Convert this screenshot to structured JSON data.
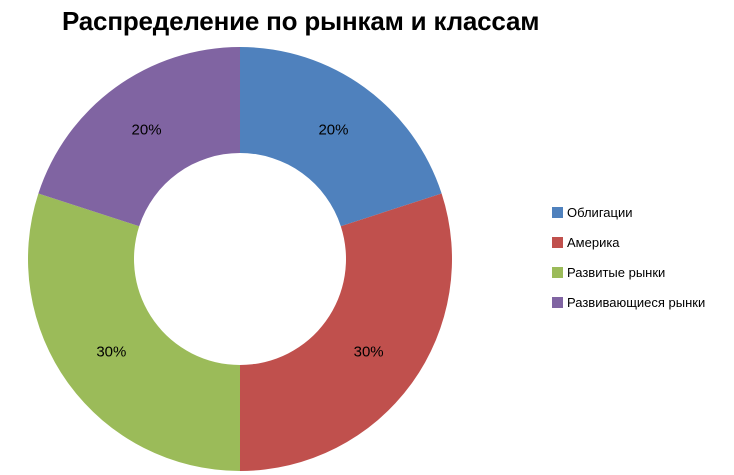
{
  "title": "Распределение по рынкам и классам",
  "chart_data": {
    "type": "pie",
    "subtype": "donut",
    "title": "Распределение по рынкам и классам",
    "labels": [
      "Облигации",
      "Америка",
      "Развитые рынки",
      "Развивающиеся рынки"
    ],
    "values": [
      20,
      30,
      30,
      20
    ],
    "unit": "%",
    "data_labels": [
      "20%",
      "30%",
      "30%",
      "20%"
    ],
    "colors": [
      "#4F81BD",
      "#C0504D",
      "#9BBB59",
      "#8064A2"
    ],
    "start_angle_deg": 0,
    "direction": "clockwise",
    "hole_ratio": 0.5,
    "legend_position": "right",
    "background": "#ffffff"
  },
  "legend": {
    "items": [
      {
        "label": "Облигации",
        "color": "#4F81BD"
      },
      {
        "label": "Америка",
        "color": "#C0504D"
      },
      {
        "label": "Развитые рынки",
        "color": "#9BBB59"
      },
      {
        "label": "Развивающиеся рынки",
        "color": "#8064A2"
      }
    ]
  }
}
